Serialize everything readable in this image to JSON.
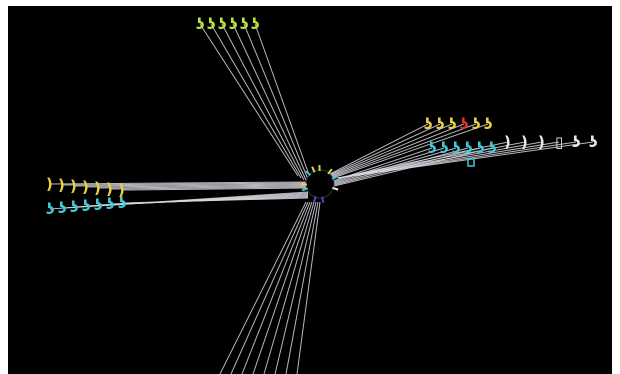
{
  "title": "",
  "colors": {
    "background": "#000000",
    "frame": "#ffffff",
    "fiber": "#d8d8e0",
    "yellow": "#e8d040",
    "green": "#b8e040",
    "cyan": "#40c8d8",
    "white": "#e8e8e8",
    "red": "#e03030",
    "blue": "#4050d0"
  },
  "bundles": [
    {
      "name": "upper-bundle",
      "color_key": "green",
      "markers": [
        "ʖ",
        "ʖ",
        "ʖ",
        "ʖ",
        "ʖ",
        "ʖ"
      ]
    },
    {
      "name": "left-yellow-bundle",
      "color_key": "yellow",
      "markers": [
        ")",
        ")",
        ")",
        ")",
        ")",
        ")",
        ")"
      ]
    },
    {
      "name": "left-cyan-bundle",
      "color_key": "cyan",
      "markers": [
        "ʖ",
        "ʖ",
        "ʖ",
        "ʖ",
        "ʖ",
        "ʖ",
        "ʖ"
      ]
    },
    {
      "name": "right-yellow-bundle",
      "color_key": "yellow",
      "markers": [
        "ʖ",
        "ʖ",
        "ʖ",
        "ʖ",
        "ʖ",
        "ʖ"
      ]
    },
    {
      "name": "right-cyan-bundle",
      "color_key": "cyan",
      "markers": [
        "ʖ",
        "ʖ",
        "ʖ",
        "ʖ",
        "ʖ",
        "ʖ"
      ]
    },
    {
      "name": "right-white-bundle",
      "color_key": "white",
      "markers": [
        ")",
        ")",
        ")",
        "▯",
        "ʖ",
        "ʖ"
      ]
    },
    {
      "name": "lower-bundle",
      "color_key": "fiber",
      "markers": []
    }
  ]
}
